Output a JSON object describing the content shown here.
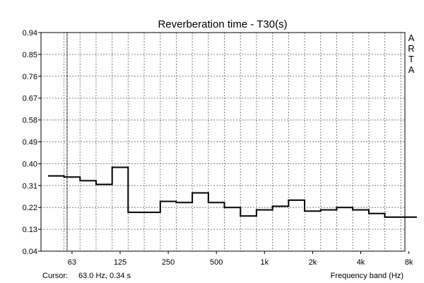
{
  "chart_data": {
    "type": "line",
    "title": "Reverberation time - T30(s)",
    "xlabel": "Frequency band (Hz)",
    "ylabel": "",
    "y_ticks": [
      "0.94",
      "0.85",
      "0.76",
      "0.67",
      "0.58",
      "0.49",
      "0.40",
      "0.31",
      "0.22",
      "0.13",
      "0.04"
    ],
    "ylim": [
      0.04,
      0.94
    ],
    "x_tick_labels": [
      "63",
      "125",
      "250",
      "500",
      "1k",
      "2k",
      "4k",
      "8k"
    ],
    "bands": [
      "50",
      "63",
      "80",
      "100",
      "125",
      "160",
      "200",
      "250",
      "315",
      "400",
      "500",
      "630",
      "800",
      "1k",
      "1.25k",
      "1.6k",
      "2k",
      "2.5k",
      "3.15k",
      "4k",
      "5k",
      "6.3k",
      "8k",
      "10k"
    ],
    "series": [
      {
        "values": [
          0.35,
          0.345,
          0.33,
          0.315,
          0.385,
          0.2,
          0.2,
          0.245,
          0.24,
          0.28,
          0.24,
          0.22,
          0.185,
          0.21,
          0.225,
          0.25,
          0.205,
          0.21,
          0.22,
          0.21,
          0.195,
          0.18,
          0.18,
          0.18
        ]
      }
    ],
    "cursor_band_index": 1,
    "grid": true
  },
  "footer": {
    "cursor_label": "Cursor:",
    "cursor_value": "63.0 Hz, 0.34 s"
  },
  "brand": {
    "letters": [
      "A",
      "R",
      "T",
      "A"
    ]
  },
  "colors": {
    "line": "#000000",
    "grid": "#808080",
    "cursor": "#000000"
  }
}
